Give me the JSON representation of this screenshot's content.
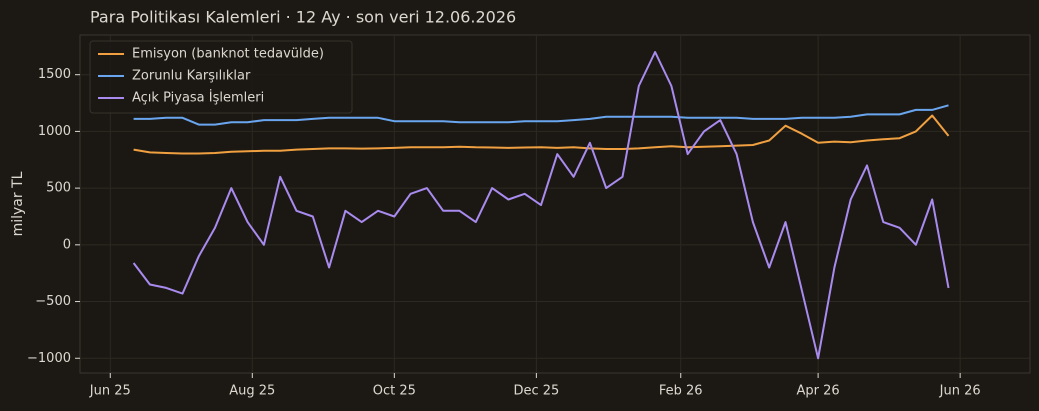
{
  "chart_data": {
    "type": "line",
    "title": "Para Politikası Kalemleri · 12 Ay · son veri 12.06.2026",
    "ylabel": "milyar TL",
    "x": [
      "2025-06-11",
      "2025-06-18",
      "2025-06-25",
      "2025-07-02",
      "2025-07-09",
      "2025-07-16",
      "2025-07-23",
      "2025-07-30",
      "2025-08-06",
      "2025-08-13",
      "2025-08-20",
      "2025-08-27",
      "2025-09-03",
      "2025-09-10",
      "2025-09-17",
      "2025-09-24",
      "2025-10-01",
      "2025-10-08",
      "2025-10-15",
      "2025-10-22",
      "2025-10-29",
      "2025-11-05",
      "2025-11-12",
      "2025-11-19",
      "2025-11-26",
      "2025-12-03",
      "2025-12-10",
      "2025-12-17",
      "2025-12-24",
      "2025-12-31",
      "2026-01-07",
      "2026-01-14",
      "2026-01-21",
      "2026-01-28",
      "2026-02-04",
      "2026-02-11",
      "2026-02-18",
      "2026-02-25",
      "2026-03-04",
      "2026-03-11",
      "2026-03-18",
      "2026-03-25",
      "2026-04-01",
      "2026-04-08",
      "2026-04-15",
      "2026-04-22",
      "2026-04-29",
      "2026-05-06",
      "2026-05-13",
      "2026-05-20",
      "2026-05-27"
    ],
    "series": [
      {
        "name": "Emisyon (banknot tedavülde)",
        "color": "#f0a040",
        "values": [
          840,
          815,
          810,
          805,
          805,
          810,
          820,
          825,
          830,
          830,
          840,
          845,
          850,
          850,
          848,
          850,
          855,
          860,
          860,
          860,
          865,
          860,
          858,
          855,
          858,
          860,
          855,
          860,
          850,
          845,
          845,
          850,
          860,
          870,
          860,
          865,
          870,
          875,
          880,
          920,
          1050,
          980,
          900,
          910,
          905,
          920,
          930,
          940,
          1000,
          1140,
          960
        ]
      },
      {
        "name": "Zorunlu Karşılıklar",
        "color": "#6aa6f0",
        "values": [
          1110,
          1110,
          1120,
          1120,
          1060,
          1060,
          1080,
          1080,
          1100,
          1100,
          1100,
          1110,
          1120,
          1120,
          1120,
          1120,
          1090,
          1090,
          1090,
          1090,
          1080,
          1080,
          1080,
          1080,
          1090,
          1090,
          1090,
          1100,
          1110,
          1130,
          1130,
          1130,
          1130,
          1130,
          1120,
          1120,
          1120,
          1120,
          1110,
          1110,
          1110,
          1120,
          1120,
          1120,
          1130,
          1150,
          1150,
          1150,
          1190,
          1190,
          1230
        ]
      },
      {
        "name": "Açık Piyasa İşlemleri",
        "color": "#a98bf0",
        "values": [
          -160,
          -350,
          -380,
          -430,
          -100,
          150,
          500,
          200,
          0,
          600,
          300,
          250,
          -200,
          300,
          200,
          300,
          250,
          450,
          500,
          300,
          300,
          200,
          500,
          400,
          450,
          350,
          800,
          600,
          900,
          500,
          600,
          1400,
          1700,
          1400,
          800,
          1000,
          1100,
          800,
          200,
          -200,
          200,
          -400,
          -1000,
          -200,
          400,
          700,
          200,
          150,
          0,
          400,
          -380
        ]
      }
    ],
    "xlim": [
      "2025-05-19",
      "2026-07-01"
    ],
    "xticks": [
      {
        "value": "2025-06",
        "label": "Jun 25"
      },
      {
        "value": "2025-08",
        "label": "Aug 25"
      },
      {
        "value": "2025-10",
        "label": "Oct 25"
      },
      {
        "value": "2025-12",
        "label": "Dec 25"
      },
      {
        "value": "2026-02",
        "label": "Feb 26"
      },
      {
        "value": "2026-04",
        "label": "Apr 26"
      },
      {
        "value": "2026-06",
        "label": "Jun 26"
      }
    ],
    "ylim": [
      -1130,
      1850
    ],
    "yticks": [
      {
        "value": -1000,
        "label": "−1000"
      },
      {
        "value": -500,
        "label": "−500"
      },
      0,
      500,
      1000,
      1500
    ],
    "grid": true,
    "legend": "upper left"
  }
}
